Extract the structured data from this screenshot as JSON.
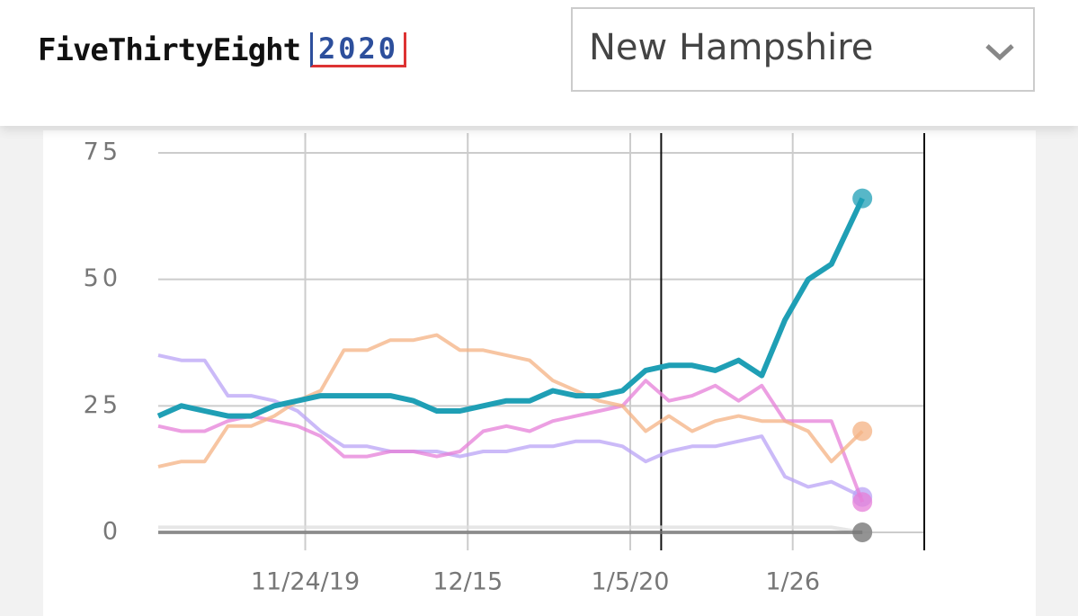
{
  "header": {
    "logo": "FiveThirtyEight",
    "badge": "2020",
    "selector": "New Hampshire"
  },
  "chart_data": {
    "type": "line",
    "x": [
      "2019-11-05",
      "2019-11-08",
      "2019-11-11",
      "2019-11-14",
      "2019-11-17",
      "2019-11-20",
      "2019-11-23",
      "2019-11-26",
      "2019-11-29",
      "2019-12-02",
      "2019-12-05",
      "2019-12-08",
      "2019-12-11",
      "2019-12-14",
      "2019-12-17",
      "2019-12-20",
      "2019-12-23",
      "2019-12-26",
      "2019-12-29",
      "2020-01-01",
      "2020-01-04",
      "2020-01-07",
      "2020-01-10",
      "2020-01-13",
      "2020-01-16",
      "2020-01-19",
      "2020-01-22",
      "2020-01-25",
      "2020-01-28",
      "2020-01-31",
      "2020-02-04"
    ],
    "series": [
      {
        "color": "#dddddd",
        "values": [
          1,
          1,
          1,
          1,
          1,
          1,
          1,
          1,
          1,
          1,
          1,
          1,
          1,
          1,
          1,
          1,
          1,
          1,
          1,
          1,
          1,
          1,
          1,
          1,
          1,
          1,
          1,
          1,
          1,
          1,
          0
        ]
      },
      {
        "color": "#b9a3f5",
        "values": [
          35,
          34,
          34,
          27,
          27,
          26,
          24,
          20,
          17,
          17,
          16,
          16,
          16,
          15,
          16,
          16,
          17,
          17,
          18,
          18,
          17,
          14,
          16,
          17,
          17,
          18,
          19,
          11,
          9,
          10,
          7
        ]
      },
      {
        "color": "#e57fd8",
        "values": [
          21,
          20,
          20,
          22,
          23,
          22,
          21,
          19,
          15,
          15,
          16,
          16,
          15,
          16,
          20,
          21,
          20,
          22,
          23,
          24,
          25,
          30,
          26,
          27,
          29,
          26,
          29,
          22,
          22,
          22,
          6
        ]
      },
      {
        "color": "#f4b183",
        "values": [
          13,
          14,
          14,
          21,
          21,
          23,
          26,
          28,
          36,
          36,
          38,
          38,
          39,
          36,
          36,
          35,
          34,
          30,
          28,
          26,
          25,
          20,
          23,
          20,
          22,
          23,
          22,
          22,
          20,
          14,
          20
        ]
      },
      {
        "color": "#777777",
        "values": [
          0,
          0,
          0,
          0,
          0,
          0,
          0,
          0,
          0,
          0,
          0,
          0,
          0,
          0,
          0,
          0,
          0,
          0,
          0,
          0,
          0,
          0,
          0,
          0,
          0,
          0,
          0,
          0,
          0,
          0,
          0
        ]
      },
      {
        "color": "#1f9fb5",
        "values": [
          23,
          25,
          24,
          23,
          23,
          25,
          26,
          27,
          27,
          27,
          27,
          26,
          24,
          24,
          25,
          26,
          26,
          28,
          27,
          27,
          28,
          32,
          33,
          33,
          32,
          34,
          31,
          42,
          50,
          53,
          66
        ]
      }
    ],
    "xlim": [
      "2019-11-05",
      "2020-02-12"
    ],
    "xticks": [
      {
        "value": "2019-11-24",
        "label": "11/24/19"
      },
      {
        "value": "2019-12-15",
        "label": "12/15"
      },
      {
        "value": "2020-01-05",
        "label": "1/5/20"
      },
      {
        "value": "2020-01-26",
        "label": "1/26"
      }
    ],
    "markers": [
      "2020-01-09",
      "2020-02-12"
    ],
    "ylim": [
      0,
      75
    ],
    "yticks": [
      0,
      25,
      50,
      75
    ],
    "grid": true
  }
}
